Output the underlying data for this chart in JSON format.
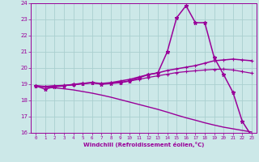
{
  "xlabel": "Windchill (Refroidissement éolien,°C)",
  "xlim": [
    -0.5,
    23.5
  ],
  "ylim": [
    16,
    24
  ],
  "yticks": [
    16,
    17,
    18,
    19,
    20,
    21,
    22,
    23,
    24
  ],
  "xticks": [
    0,
    1,
    2,
    3,
    4,
    5,
    6,
    7,
    8,
    9,
    10,
    11,
    12,
    13,
    14,
    15,
    16,
    17,
    18,
    19,
    20,
    21,
    22,
    23
  ],
  "bg_color": "#cce8e8",
  "grid_color": "#aacfcf",
  "line_color": "#990099",
  "lines": [
    {
      "x": [
        0,
        1,
        2,
        3,
        4,
        5,
        6,
        7,
        8,
        9,
        10,
        11,
        12,
        13,
        14,
        15,
        16,
        17,
        18,
        19,
        20,
        21,
        22,
        23
      ],
      "y": [
        18.9,
        18.7,
        18.85,
        18.9,
        19.0,
        19.05,
        19.1,
        19.0,
        19.05,
        19.1,
        19.2,
        19.4,
        19.6,
        19.7,
        21.0,
        23.1,
        23.85,
        22.8,
        22.8,
        20.65,
        19.6,
        18.5,
        16.7,
        15.8
      ],
      "marker": "*",
      "ms": 3.5,
      "lw": 1.1
    },
    {
      "x": [
        0,
        1,
        2,
        3,
        4,
        5,
        6,
        7,
        8,
        9,
        10,
        11,
        12,
        13,
        14,
        15,
        16,
        17,
        18,
        19,
        20,
        21,
        22,
        23
      ],
      "y": [
        18.9,
        18.87,
        18.9,
        18.93,
        18.97,
        19.05,
        19.1,
        19.05,
        19.1,
        19.2,
        19.3,
        19.45,
        19.6,
        19.7,
        19.85,
        19.95,
        20.05,
        20.15,
        20.3,
        20.45,
        20.5,
        20.55,
        20.5,
        20.45
      ],
      "marker": "+",
      "ms": 3.5,
      "lw": 1.1
    },
    {
      "x": [
        0,
        1,
        2,
        3,
        4,
        5,
        6,
        7,
        8,
        9,
        10,
        11,
        12,
        13,
        14,
        15,
        16,
        17,
        18,
        19,
        20,
        21,
        22,
        23
      ],
      "y": [
        18.9,
        18.85,
        18.9,
        18.92,
        18.96,
        19.03,
        19.08,
        19.03,
        19.08,
        19.12,
        19.2,
        19.3,
        19.42,
        19.52,
        19.62,
        19.72,
        19.78,
        19.83,
        19.88,
        19.92,
        19.93,
        19.88,
        19.78,
        19.68
      ],
      "marker": "+",
      "ms": 3.0,
      "lw": 0.9
    },
    {
      "x": [
        0,
        1,
        2,
        3,
        4,
        5,
        6,
        7,
        8,
        9,
        10,
        11,
        12,
        13,
        14,
        15,
        16,
        17,
        18,
        19,
        20,
        21,
        22,
        23
      ],
      "y": [
        18.9,
        18.83,
        18.78,
        18.72,
        18.65,
        18.55,
        18.45,
        18.33,
        18.2,
        18.05,
        17.9,
        17.75,
        17.6,
        17.45,
        17.28,
        17.1,
        16.93,
        16.78,
        16.62,
        16.48,
        16.35,
        16.25,
        16.15,
        16.05
      ],
      "marker": null,
      "ms": 0,
      "lw": 1.0
    }
  ]
}
